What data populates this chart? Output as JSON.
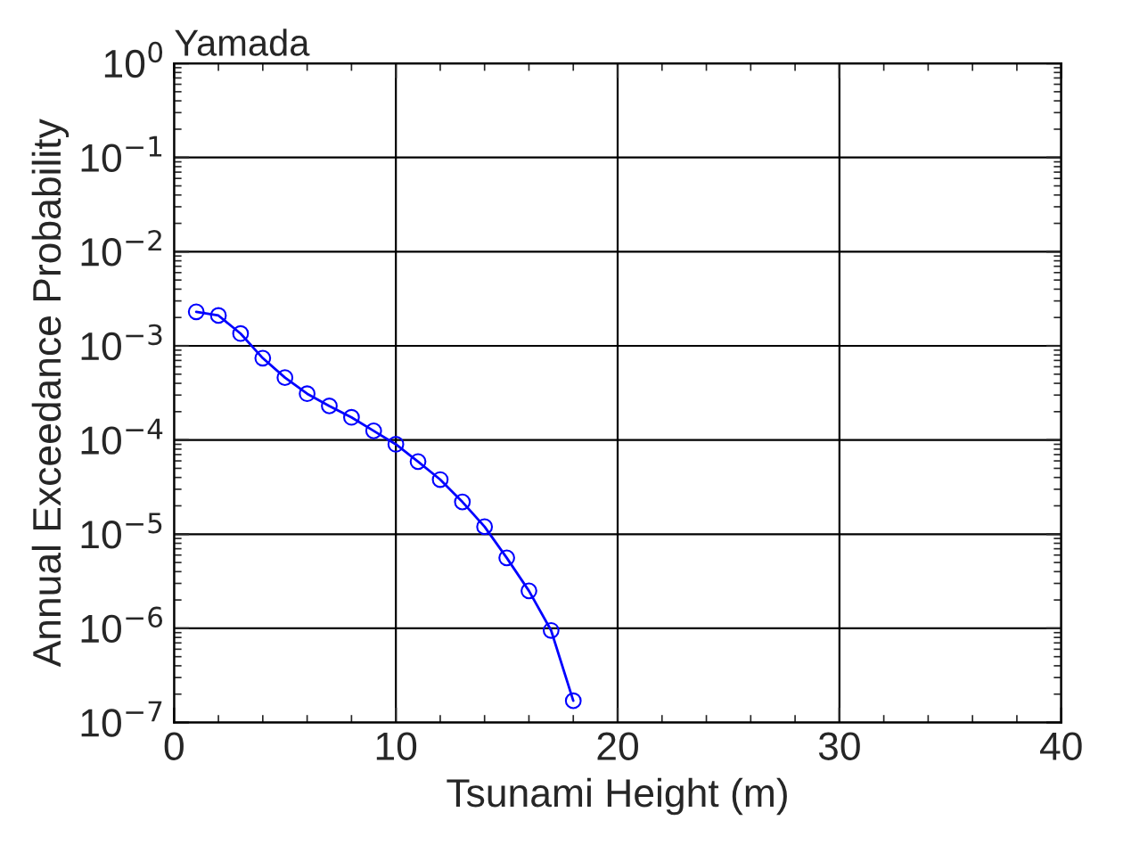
{
  "chart_data": {
    "type": "line",
    "title": "Yamada",
    "xlabel": "Tsunami Height (m)",
    "ylabel": "Annual Exceedance Probability",
    "x": [
      1,
      2,
      3,
      4,
      5,
      6,
      7,
      8,
      9,
      10,
      11,
      12,
      13,
      14,
      15,
      16,
      17,
      18
    ],
    "series": [
      {
        "color": "#0000ff",
        "values": [
          0.0023,
          0.0021,
          0.00135,
          0.00074,
          0.00046,
          0.00031,
          0.00023,
          0.000174,
          0.000125,
          9e-05,
          5.9e-05,
          3.8e-05,
          2.2e-05,
          1.2e-05,
          5.6e-06,
          2.5e-06,
          9.5e-07,
          1.7e-07
        ]
      }
    ],
    "log": "y",
    "marker": "circle",
    "line_style": "solid",
    "grid": true,
    "xlim": [
      0,
      40
    ],
    "xticks": [
      0,
      10,
      20,
      30,
      40
    ],
    "ylim": [
      1e-07,
      1
    ],
    "yticks": [
      {
        "value": 1e-07,
        "label": "10$^{−7}$"
      },
      {
        "value": 1e-06,
        "label": "10$^{−6}$"
      },
      {
        "value": 1e-05,
        "label": "10$^{−5}$"
      },
      {
        "value": 0.0001,
        "label": "10$^{−4}$"
      },
      {
        "value": 0.001,
        "label": "10$^{−3}$"
      },
      {
        "value": 0.01,
        "label": "10$^{−2}$"
      },
      {
        "value": 0.1,
        "label": "10$^{−1}$"
      },
      {
        "value": 1,
        "label": "10$^{0}$"
      }
    ]
  }
}
